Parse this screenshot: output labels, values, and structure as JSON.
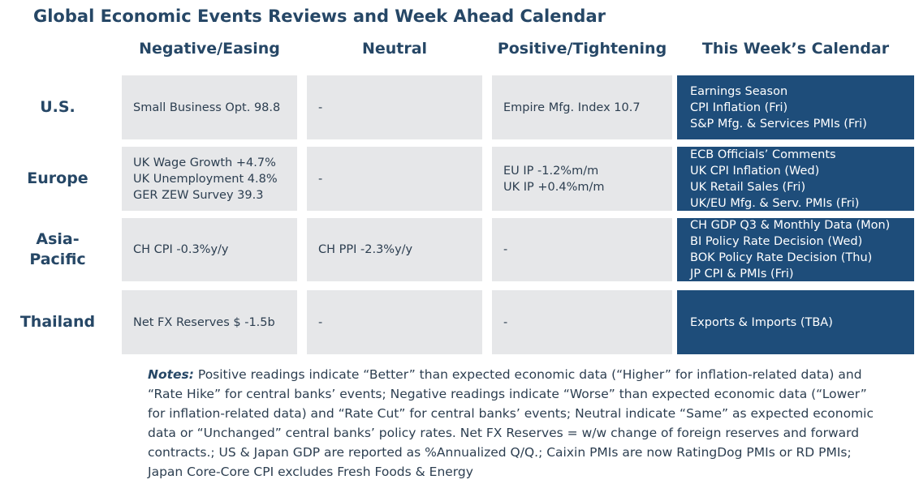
{
  "title": "Global Economic Events Reviews and Week Ahead Calendar",
  "columns": [
    "Negative/Easing",
    "Neutral",
    "Positive/Tightening",
    "This Week’s Calendar"
  ],
  "rows": [
    {
      "region": "U.S.",
      "negative": [
        "Small Business Opt. 98.8"
      ],
      "neutral": [
        "-"
      ],
      "positive": [
        "Empire Mfg. Index 10.7"
      ],
      "calendar": [
        "Earnings Season",
        "CPI Inflation (Fri)",
        "S&P Mfg. & Services PMIs (Fri)"
      ]
    },
    {
      "region": "Europe",
      "negative": [
        "UK Wage Growth +4.7%",
        "UK Unemployment 4.8%",
        "GER ZEW Survey 39.3"
      ],
      "neutral": [
        "-"
      ],
      "positive": [
        "EU IP -1.2%m/m",
        "UK IP +0.4%m/m"
      ],
      "calendar": [
        "ECB Officials’ Comments",
        "UK CPI Inflation (Wed)",
        "UK Retail Sales (Fri)",
        "UK/EU Mfg. & Serv. PMIs (Fri)"
      ]
    },
    {
      "region": "Asia-\nPacific",
      "negative": [
        "CH CPI -0.3%y/y"
      ],
      "neutral": [
        "CH PPI -2.3%y/y"
      ],
      "positive": [
        "-"
      ],
      "calendar": [
        "CH GDP Q3 & Monthly Data (Mon)",
        "BI Policy Rate Decision (Wed)",
        "BOK Policy Rate Decision (Thu)",
        "JP CPI & PMIs (Fri)"
      ]
    },
    {
      "region": "Thailand",
      "negative": [
        "Net FX Reserves $ -1.5b"
      ],
      "neutral": [
        "-"
      ],
      "positive": [
        "-"
      ],
      "calendar": [
        "Exports & Imports (TBA)"
      ]
    }
  ],
  "notes": {
    "label": "Notes:",
    "text": " Positive readings indicate “Better” than expected economic data (“Higher” for inflation-related data) and “Rate Hike” for central banks’ events; Negative readings indicate “Worse” than expected economic data (“Lower” for inflation-related data) and “Rate Cut” for central banks’ events; Neutral indicate “Same” as expected economic data or “Unchanged” central banks’ policy rates. Net FX Reserves = w/w change of foreign reserves and forward contracts.; US & Japan GDP are reported as %Annualized Q/Q.; Caixin PMIs are now RatingDog PMIs or RD PMIs; Japan Core-Core CPI excludes Fresh Foods & Energy"
  }
}
